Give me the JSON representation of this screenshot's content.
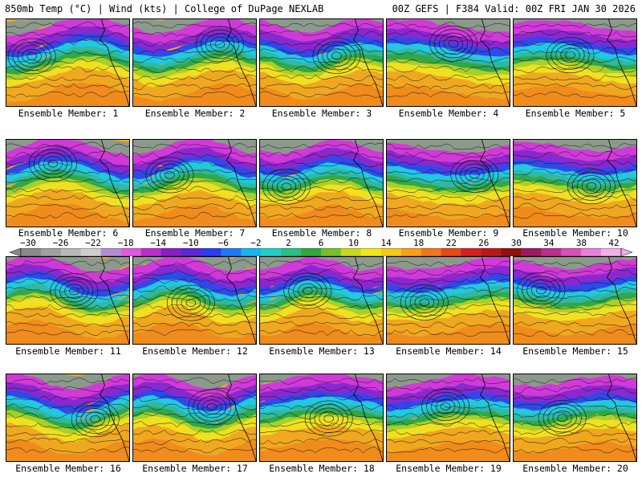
{
  "header": {
    "left": "850mb Temp (°C) | Wind (kts) | College of DuPage NEXLAB",
    "right": "00Z GEFS | F384 Valid: 00Z FRI JAN 30 2026"
  },
  "colorbar": {
    "tick_labels": [
      "−30",
      "−26",
      "−22",
      "−18",
      "−14",
      "−10",
      "−6",
      "−2",
      "2",
      "6",
      "10",
      "14",
      "18",
      "22",
      "26",
      "30",
      "34",
      "38",
      "42"
    ],
    "colors": [
      "#8a8a8a",
      "#a0a0a0",
      "#b8b8b8",
      "#cfcfcf",
      "#b58cd0",
      "#e05ae0",
      "#c02cc8",
      "#8a1cc8",
      "#5a28d8",
      "#2c3cf0",
      "#1e78f8",
      "#18b4f0",
      "#20d0c8",
      "#28c084",
      "#30a83c",
      "#78c028",
      "#c8d820",
      "#f0e818",
      "#f8c818",
      "#f8a018",
      "#f07818",
      "#e84818",
      "#d82020",
      "#b81818",
      "#901010",
      "#a01860",
      "#c02c8c",
      "#d850b8",
      "#e880d8",
      "#f0b0e8"
    ]
  },
  "palette": {
    "gray": "#8c9a8c",
    "magenta": "#d03ad8",
    "purple": "#8a28d0",
    "blue": "#3048e8",
    "cyan": "#20c8e0",
    "teal": "#30b8a0",
    "green": "#30a848",
    "yellowgreen": "#a8d028",
    "yellow": "#f0e020",
    "orange": "#f0a820",
    "darkorange": "#f08c1c",
    "red": "#e04418"
  },
  "members": [
    {
      "label": "Ensemble Member: 1"
    },
    {
      "label": "Ensemble Member: 2"
    },
    {
      "label": "Ensemble Member: 3"
    },
    {
      "label": "Ensemble Member: 4"
    },
    {
      "label": "Ensemble Member: 5"
    },
    {
      "label": "Ensemble Member: 6"
    },
    {
      "label": "Ensemble Member: 7"
    },
    {
      "label": "Ensemble Member: 8"
    },
    {
      "label": "Ensemble Member: 9"
    },
    {
      "label": "Ensemble Member: 10"
    },
    {
      "label": "Ensemble Member: 11"
    },
    {
      "label": "Ensemble Member: 12"
    },
    {
      "label": "Ensemble Member: 13"
    },
    {
      "label": "Ensemble Member: 14"
    },
    {
      "label": "Ensemble Member: 15"
    },
    {
      "label": "Ensemble Member: 16"
    },
    {
      "label": "Ensemble Member: 17"
    },
    {
      "label": "Ensemble Member: 18"
    },
    {
      "label": "Ensemble Member: 19"
    },
    {
      "label": "Ensemble Member: 20"
    }
  ]
}
